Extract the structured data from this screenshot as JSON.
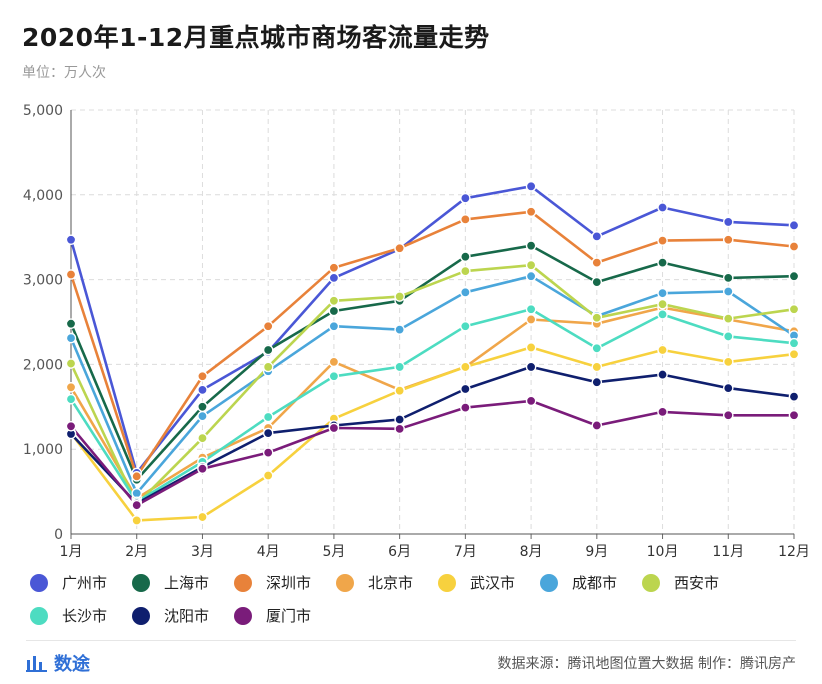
{
  "title": "2020年1-12月重点城市商场客流量走势",
  "subtitle": "单位：万人次",
  "footer": {
    "brand": "数途",
    "source": "数据来源：腾讯地图位置大数据  制作：腾讯房产"
  },
  "chart_data": {
    "type": "line",
    "categories": [
      "1月",
      "2月",
      "3月",
      "4月",
      "5月",
      "6月",
      "7月",
      "8月",
      "9月",
      "10月",
      "11月",
      "12月"
    ],
    "ylim": [
      0,
      5000
    ],
    "yticks": [
      0,
      1000,
      2000,
      3000,
      4000,
      5000
    ],
    "ytick_labels": [
      "0",
      "1,000",
      "2,000",
      "3,000",
      "4,000",
      "5,000"
    ],
    "grid": true,
    "legend_position": "bottom",
    "series": [
      {
        "name": "广州市",
        "color": "#4a57d6",
        "values": [
          3470,
          720,
          1700,
          2150,
          3020,
          3360,
          3960,
          4100,
          3510,
          3850,
          3680,
          3640
        ]
      },
      {
        "name": "上海市",
        "color": "#17694a",
        "values": [
          2480,
          640,
          1500,
          2170,
          2630,
          2750,
          3270,
          3400,
          2970,
          3200,
          3020,
          3040
        ]
      },
      {
        "name": "深圳市",
        "color": "#e8823a",
        "values": [
          3060,
          680,
          1860,
          2450,
          3140,
          3370,
          3710,
          3800,
          3200,
          3460,
          3470,
          3390
        ]
      },
      {
        "name": "北京市",
        "color": "#f0a64a",
        "values": [
          1730,
          420,
          900,
          1250,
          2030,
          1700,
          1970,
          2530,
          2480,
          2670,
          2530,
          2390
        ]
      },
      {
        "name": "武汉市",
        "color": "#f7d13e",
        "values": [
          1190,
          160,
          200,
          690,
          1360,
          1690,
          1970,
          2200,
          1970,
          2170,
          2030,
          2120
        ]
      },
      {
        "name": "成都市",
        "color": "#4aa6db",
        "values": [
          2310,
          480,
          1390,
          1920,
          2450,
          2410,
          2850,
          3040,
          2570,
          2840,
          2860,
          2340
        ]
      },
      {
        "name": "西安市",
        "color": "#bcd54f",
        "values": [
          2010,
          350,
          1130,
          1970,
          2750,
          2800,
          3100,
          3170,
          2550,
          2710,
          2540,
          2650
        ]
      },
      {
        "name": "长沙市",
        "color": "#4ddcc1",
        "values": [
          1590,
          380,
          850,
          1380,
          1860,
          1970,
          2450,
          2650,
          2190,
          2590,
          2330,
          2250
        ]
      },
      {
        "name": "沈阳市",
        "color": "#0f1f6e",
        "values": [
          1180,
          360,
          790,
          1190,
          1280,
          1350,
          1710,
          1970,
          1790,
          1880,
          1720,
          1620
        ]
      },
      {
        "name": "厦门市",
        "color": "#7a1c7a",
        "values": [
          1270,
          340,
          770,
          960,
          1250,
          1240,
          1490,
          1570,
          1280,
          1440,
          1400,
          1400
        ]
      }
    ]
  }
}
